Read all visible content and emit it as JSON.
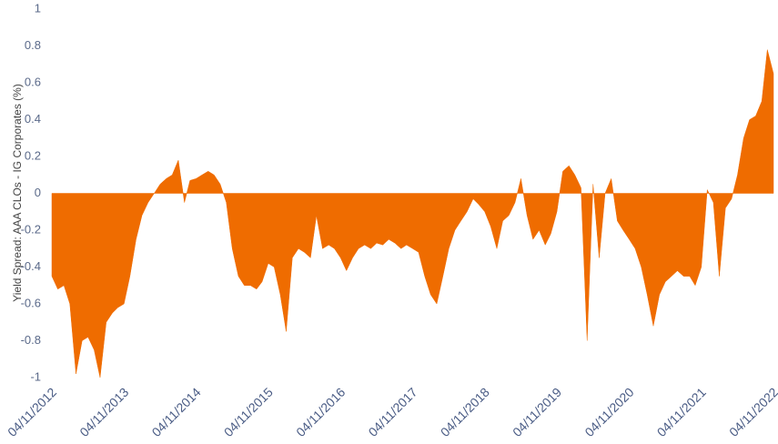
{
  "chart_data": {
    "type": "area",
    "y_label": "Yield Spread: AAA CLOs - IG Corporates (%)",
    "color": "#ef6c00",
    "ylim": [
      -1,
      1
    ],
    "yticks": [
      -1,
      -0.8,
      -0.6,
      -0.4,
      -0.2,
      0,
      0.2,
      0.4,
      0.6,
      0.8,
      1
    ],
    "xlim": [
      "04/11/2012",
      "04/11/2022"
    ],
    "xticks": [
      "04/11/2012",
      "04/11/2013",
      "04/11/2014",
      "04/11/2015",
      "04/11/2016",
      "04/11/2017",
      "04/11/2018",
      "04/11/2019",
      "04/11/2020",
      "04/11/2021",
      "04/11/2022"
    ],
    "x": [
      "04/11/2012",
      "05/11/2012",
      "06/11/2012",
      "07/11/2012",
      "08/11/2012",
      "09/11/2012",
      "10/11/2012",
      "11/11/2012",
      "12/11/2012",
      "01/11/2013",
      "02/11/2013",
      "03/11/2013",
      "04/11/2013",
      "05/11/2013",
      "06/11/2013",
      "07/11/2013",
      "08/11/2013",
      "09/11/2013",
      "10/11/2013",
      "11/11/2013",
      "12/11/2013",
      "01/11/2014",
      "02/11/2014",
      "03/11/2014",
      "04/11/2014",
      "05/11/2014",
      "06/11/2014",
      "07/11/2014",
      "08/11/2014",
      "09/11/2014",
      "10/11/2014",
      "11/11/2014",
      "12/11/2014",
      "01/11/2015",
      "02/11/2015",
      "03/11/2015",
      "04/11/2015",
      "05/11/2015",
      "06/11/2015",
      "07/11/2015",
      "08/11/2015",
      "09/11/2015",
      "10/11/2015",
      "11/11/2015",
      "12/11/2015",
      "01/11/2016",
      "02/11/2016",
      "03/11/2016",
      "04/11/2016",
      "05/11/2016",
      "06/11/2016",
      "07/11/2016",
      "08/11/2016",
      "09/11/2016",
      "10/11/2016",
      "11/11/2016",
      "12/11/2016",
      "01/11/2017",
      "02/11/2017",
      "03/11/2017",
      "04/11/2017",
      "05/11/2017",
      "06/11/2017",
      "07/11/2017",
      "08/11/2017",
      "09/11/2017",
      "10/11/2017",
      "11/11/2017",
      "12/11/2017",
      "01/11/2018",
      "02/11/2018",
      "03/11/2018",
      "04/11/2018",
      "05/11/2018",
      "06/11/2018",
      "07/11/2018",
      "08/11/2018",
      "09/11/2018",
      "10/11/2018",
      "11/11/2018",
      "12/11/2018",
      "01/11/2019",
      "02/11/2019",
      "03/11/2019",
      "04/11/2019",
      "05/11/2019",
      "06/11/2019",
      "07/11/2019",
      "08/11/2019",
      "09/11/2019",
      "10/11/2019",
      "11/11/2019",
      "12/11/2019",
      "01/11/2020",
      "02/11/2020",
      "03/11/2020",
      "04/11/2020",
      "05/11/2020",
      "06/11/2020",
      "07/11/2020",
      "08/11/2020",
      "09/11/2020",
      "10/11/2020",
      "11/11/2020",
      "12/11/2020",
      "01/11/2021",
      "02/11/2021",
      "03/11/2021",
      "04/11/2021",
      "05/11/2021",
      "06/11/2021",
      "07/11/2021",
      "08/11/2021",
      "09/11/2021",
      "10/11/2021",
      "11/11/2021",
      "12/11/2021",
      "01/11/2022",
      "02/11/2022",
      "03/11/2022",
      "04/11/2022"
    ],
    "values": [
      -0.45,
      -0.52,
      -0.5,
      -0.6,
      -0.98,
      -0.8,
      -0.78,
      -0.85,
      -1.0,
      -0.7,
      -0.65,
      -0.62,
      -0.6,
      -0.45,
      -0.25,
      -0.12,
      -0.05,
      0.0,
      0.05,
      0.08,
      0.1,
      0.18,
      -0.05,
      0.07,
      0.08,
      0.1,
      0.12,
      0.1,
      0.05,
      -0.05,
      -0.3,
      -0.45,
      -0.5,
      -0.5,
      -0.52,
      -0.48,
      -0.38,
      -0.4,
      -0.55,
      -0.75,
      -0.35,
      -0.3,
      -0.32,
      -0.35,
      -0.12,
      -0.3,
      -0.28,
      -0.3,
      -0.35,
      -0.42,
      -0.35,
      -0.3,
      -0.28,
      -0.3,
      -0.27,
      -0.28,
      -0.25,
      -0.27,
      -0.3,
      -0.28,
      -0.3,
      -0.32,
      -0.45,
      -0.55,
      -0.6,
      -0.45,
      -0.3,
      -0.2,
      -0.15,
      -0.1,
      -0.03,
      -0.06,
      -0.1,
      -0.18,
      -0.3,
      -0.15,
      -0.12,
      -0.05,
      0.08,
      -0.12,
      -0.25,
      -0.2,
      -0.28,
      -0.22,
      -0.1,
      0.12,
      0.15,
      0.1,
      0.03,
      -0.8,
      0.05,
      -0.35,
      0.0,
      0.08,
      -0.15,
      -0.2,
      -0.25,
      -0.3,
      -0.4,
      -0.55,
      -0.72,
      -0.55,
      -0.48,
      -0.45,
      -0.42,
      -0.45,
      -0.45,
      -0.5,
      -0.4,
      0.02,
      -0.05,
      -0.45,
      -0.08,
      -0.03,
      0.1,
      0.3,
      0.4,
      0.42,
      0.5,
      0.78,
      0.65
    ]
  }
}
